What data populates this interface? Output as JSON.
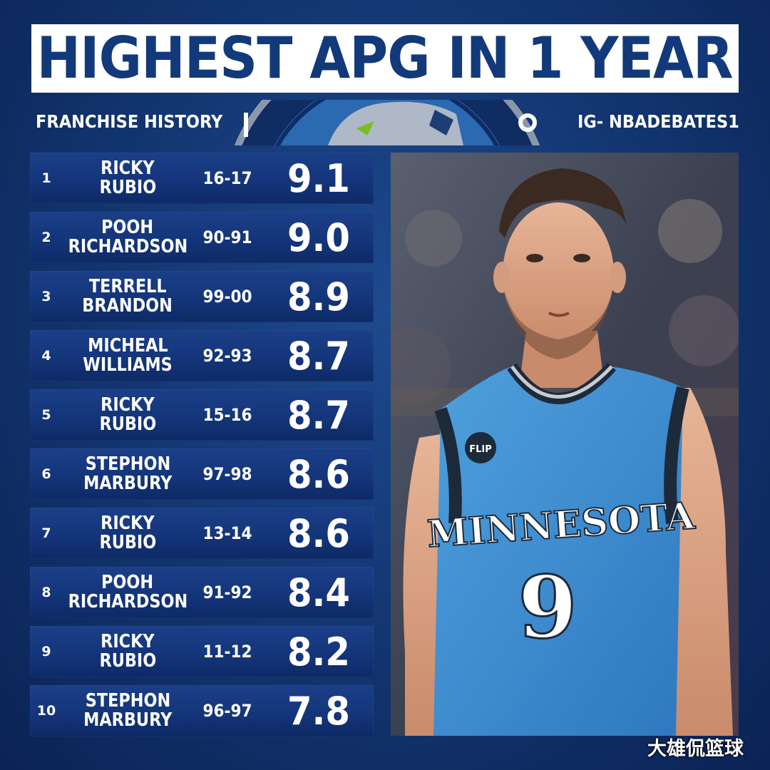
{
  "title": "HIGHEST APG IN 1 YEAR",
  "subtitle_left": "FRANCHISE HISTORY",
  "subtitle_right": "IG- NBADEBATES1",
  "rows": [
    {
      "rank": "1",
      "first": "RICKY",
      "last": "RUBIO",
      "season": "16-17",
      "apg": "9.1"
    },
    {
      "rank": "2",
      "first": "POOH",
      "last": "RICHARDSON",
      "season": "90-91",
      "apg": "9.0"
    },
    {
      "rank": "3",
      "first": "TERRELL",
      "last": "BRANDON",
      "season": "99-00",
      "apg": "8.9"
    },
    {
      "rank": "4",
      "first": "MICHEAL",
      "last": "WILLIAMS",
      "season": "92-93",
      "apg": "8.7"
    },
    {
      "rank": "5",
      "first": "RICKY",
      "last": "RUBIO",
      "season": "15-16",
      "apg": "8.7"
    },
    {
      "rank": "6",
      "first": "STEPHON",
      "last": "MARBURY",
      "season": "97-98",
      "apg": "8.6"
    },
    {
      "rank": "7",
      "first": "RICKY",
      "last": "RUBIO",
      "season": "13-14",
      "apg": "8.6"
    },
    {
      "rank": "8",
      "first": "POOH",
      "last": "RICHARDSON",
      "season": "91-92",
      "apg": "8.4"
    },
    {
      "rank": "9",
      "first": "RICKY",
      "last": "RUBIO",
      "season": "11-12",
      "apg": "8.2"
    },
    {
      "rank": "10",
      "first": "STEPHON",
      "last": "MARBURY",
      "season": "96-97",
      "apg": "7.8"
    }
  ],
  "photo": {
    "jersey_text": "MINNESOTA",
    "jersey_number": "9",
    "patch_text": "FLIP"
  },
  "watermark": "大雄侃篮球",
  "colors": {
    "background": "#12346e",
    "title_text": "#123a7a",
    "row": "#15377c",
    "jersey": "#3f8fd0"
  }
}
